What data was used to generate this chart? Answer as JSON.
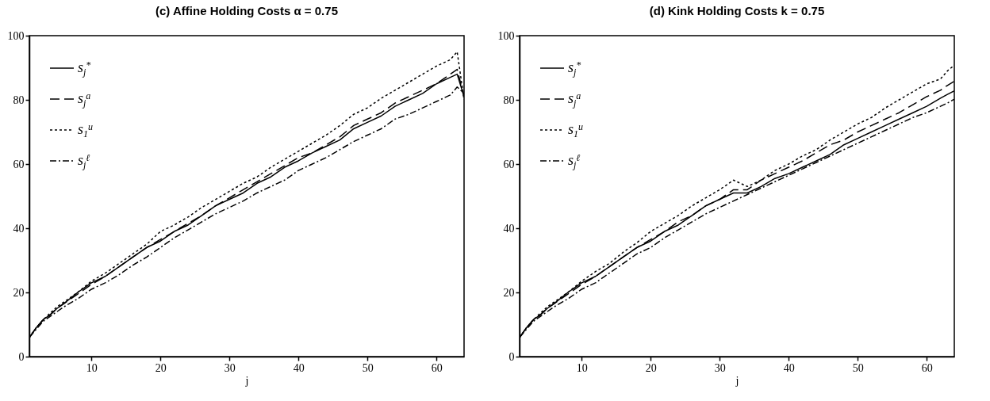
{
  "chart_data": [
    {
      "type": "line",
      "title": "(c) Affine Holding Costs α = 0.75",
      "xlabel": "j",
      "x": [
        1,
        2,
        3,
        4,
        5,
        6,
        8,
        10,
        12,
        14,
        16,
        18,
        20,
        22,
        24,
        26,
        28,
        30,
        32,
        34,
        36,
        38,
        40,
        42,
        44,
        46,
        48,
        50,
        52,
        54,
        56,
        58,
        60,
        62,
        63,
        64
      ],
      "series": [
        {
          "name": "s$_{j}$$^{*}$",
          "color": "#000000",
          "line_style": "solid",
          "values": [
            6,
            9,
            11.5,
            13,
            15,
            16.5,
            20,
            23,
            25,
            28,
            31,
            34,
            36,
            39,
            41,
            44,
            47,
            49,
            51,
            54,
            56,
            59,
            61,
            63.5,
            65.5,
            67.5,
            71,
            73,
            75,
            78,
            80,
            82,
            85,
            87,
            88,
            81
          ]
        },
        {
          "name": "s$_{j}$$^{a}$",
          "color": "#000000",
          "line_style": "dashed",
          "values": [
            6,
            9,
            11.5,
            13,
            15,
            16.5,
            19.5,
            22.5,
            25,
            28,
            31,
            34,
            36.5,
            39,
            41.5,
            44,
            47,
            49.5,
            52,
            54.5,
            57,
            59.5,
            62,
            63.5,
            66,
            68.5,
            72,
            74,
            76,
            79,
            81,
            83,
            85,
            88,
            89.5,
            81
          ]
        },
        {
          "name": "s$_{1}$$^{u}$",
          "color": "#000000",
          "line_style": "dotted",
          "values": [
            6,
            9,
            11.5,
            13.5,
            15.5,
            17,
            20,
            23.5,
            26,
            29,
            32,
            35,
            39,
            41,
            43.5,
            46.5,
            49,
            51.5,
            54,
            56,
            59,
            61.5,
            64,
            66.5,
            69,
            72,
            75.5,
            77.5,
            80.5,
            83,
            85.5,
            88,
            90.5,
            92.5,
            95,
            80
          ]
        },
        {
          "name": "s$_{j}$$^{ℓ}$",
          "color": "#000000",
          "line_style": "dashdot",
          "values": [
            6,
            8.5,
            11,
            12.5,
            14,
            15.5,
            18,
            21,
            23,
            25.5,
            28.5,
            31,
            34,
            37,
            39.5,
            42,
            44.5,
            46.5,
            48.5,
            51,
            53,
            55,
            58,
            60,
            62,
            64.5,
            67,
            69,
            71,
            74,
            75.5,
            77.5,
            79.5,
            81.5,
            84,
            82
          ]
        }
      ],
      "xlim": [
        1,
        64
      ],
      "xticks": [
        10,
        20,
        30,
        40,
        50,
        60
      ],
      "ylim": [
        0,
        100
      ],
      "yticks": [
        0,
        20,
        40,
        60,
        80,
        100
      ],
      "legend": "top left"
    },
    {
      "type": "line",
      "title": "(d) Kink Holding Costs k = 0.75",
      "xlabel": "j",
      "x": [
        1,
        2,
        3,
        4,
        5,
        6,
        8,
        10,
        12,
        14,
        16,
        18,
        20,
        22,
        24,
        26,
        28,
        30,
        32,
        34,
        36,
        38,
        40,
        42,
        44,
        46,
        48,
        50,
        52,
        54,
        56,
        58,
        60,
        62,
        63,
        64
      ],
      "series": [
        {
          "name": "s$_{j}$$^{*}$",
          "color": "#000000",
          "line_style": "solid",
          "values": [
            6,
            9,
            11.5,
            13,
            15,
            16.5,
            20,
            23,
            25,
            28,
            31,
            34,
            36,
            39,
            41,
            44,
            47,
            49,
            51,
            51,
            53,
            55.5,
            57,
            59,
            61,
            63,
            66,
            68,
            70,
            72,
            74,
            76,
            78,
            80.5,
            81.7,
            82.8
          ]
        },
        {
          "name": "s$_{j}$$^{a}$",
          "color": "#000000",
          "line_style": "dashed",
          "values": [
            6,
            9,
            11.5,
            13,
            15,
            16.5,
            19.5,
            22.5,
            25,
            28,
            31,
            34,
            36.5,
            39,
            42,
            44,
            47,
            49,
            52,
            52,
            55,
            57,
            59,
            61,
            63.5,
            66,
            67.5,
            70,
            72,
            74,
            76,
            78.5,
            81,
            83,
            84.5,
            85.8
          ]
        },
        {
          "name": "s$_{1}$$^{u}$",
          "color": "#000000",
          "line_style": "dotted",
          "values": [
            6,
            9,
            11.5,
            13.5,
            15.5,
            17,
            20,
            23.5,
            26.5,
            29,
            32.5,
            35.5,
            39,
            41.5,
            44,
            47,
            49.5,
            52,
            55,
            53,
            55,
            58,
            60,
            62.5,
            64.5,
            67.5,
            70,
            72.5,
            74.5,
            77.5,
            80,
            82.5,
            85,
            86.5,
            89,
            90.8
          ]
        },
        {
          "name": "s$_{j}$$^{ℓ}$",
          "color": "#000000",
          "line_style": "dashdot",
          "values": [
            6,
            8.5,
            11,
            12.5,
            14,
            15.5,
            18,
            21,
            23,
            26,
            29,
            32,
            34,
            37,
            39.5,
            42,
            44.5,
            46.5,
            48.5,
            50.5,
            52.5,
            54.5,
            56.5,
            58.5,
            60.5,
            62.5,
            64.5,
            66.5,
            68.5,
            70.5,
            72.5,
            74.5,
            76,
            78,
            79,
            80.2
          ]
        }
      ],
      "xlim": [
        1,
        64
      ],
      "xticks": [
        10,
        20,
        30,
        40,
        50,
        60
      ],
      "ylim": [
        0,
        100
      ],
      "yticks": [
        0,
        20,
        40,
        60,
        80,
        100
      ],
      "legend": "top left"
    }
  ]
}
